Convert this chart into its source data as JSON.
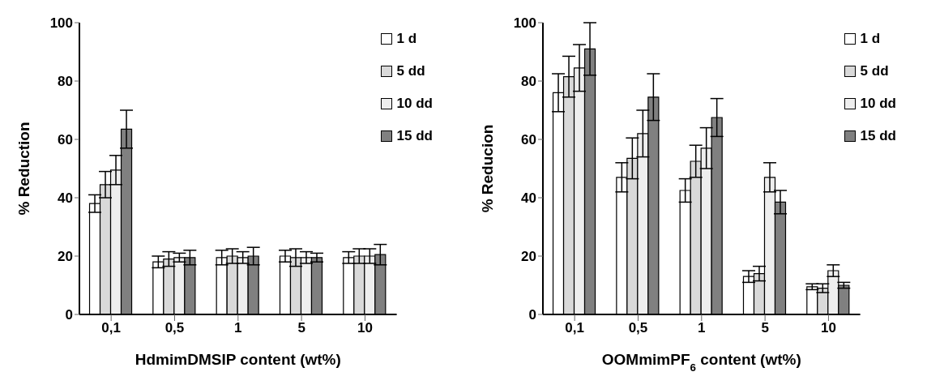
{
  "chart_data": [
    {
      "type": "bar",
      "xlabel": "HdmimDMSIP content (wt%)",
      "ylabel": "% Reduction",
      "categories": [
        "0,1",
        "0,5",
        "1",
        "5",
        "10"
      ],
      "ylim": [
        0,
        100
      ],
      "yticks": [
        0,
        20,
        40,
        60,
        80,
        100
      ],
      "grid": false,
      "legend": "top right",
      "series": [
        {
          "name": "1 d",
          "color": "#ffffff",
          "values": [
            38,
            18,
            19.5,
            20,
            19.5
          ],
          "errors": [
            3,
            2,
            2.5,
            2,
            2
          ]
        },
        {
          "name": "5 dd",
          "color": "#d9d9d9",
          "values": [
            44.5,
            19,
            20,
            19.5,
            20
          ],
          "errors": [
            4.5,
            2.5,
            2.5,
            3,
            2.5
          ]
        },
        {
          "name": "10 dd",
          "color": "#eeeeee",
          "values": [
            49.5,
            19.5,
            19.5,
            19.5,
            20
          ],
          "errors": [
            5,
            1.5,
            2,
            2,
            2.5
          ]
        },
        {
          "name": "15 dd",
          "color": "#808080",
          "values": [
            63.5,
            19.5,
            20,
            19.5,
            20.5
          ],
          "errors": [
            6.5,
            2.5,
            3,
            1.5,
            3.5
          ]
        }
      ]
    },
    {
      "type": "bar",
      "xlabel": "OOMmimPF$_{6}$ content (wt%)",
      "ylabel": "% Reducion",
      "categories": [
        "0,1",
        "0,5",
        "1",
        "5",
        "10"
      ],
      "ylim": [
        0,
        100
      ],
      "yticks": [
        0,
        20,
        40,
        60,
        80,
        100
      ],
      "grid": false,
      "legend": "top right",
      "series": [
        {
          "name": "1 d",
          "color": "#ffffff",
          "values": [
            76,
            47,
            42.5,
            13,
            9.5
          ],
          "errors": [
            6.5,
            5,
            4,
            2,
            1
          ]
        },
        {
          "name": "5 dd",
          "color": "#d9d9d9",
          "values": [
            81.5,
            53.5,
            52.5,
            14,
            9
          ],
          "errors": [
            7,
            7,
            5.5,
            2.5,
            1.5
          ]
        },
        {
          "name": "10 dd",
          "color": "#eeeeee",
          "values": [
            84.5,
            62,
            57,
            47,
            15
          ],
          "errors": [
            8,
            8,
            7,
            5,
            2
          ]
        },
        {
          "name": "15 dd",
          "color": "#808080",
          "values": [
            91,
            74.5,
            67.5,
            38.5,
            10
          ],
          "errors": [
            9,
            8,
            6.5,
            4,
            1
          ]
        }
      ]
    }
  ]
}
